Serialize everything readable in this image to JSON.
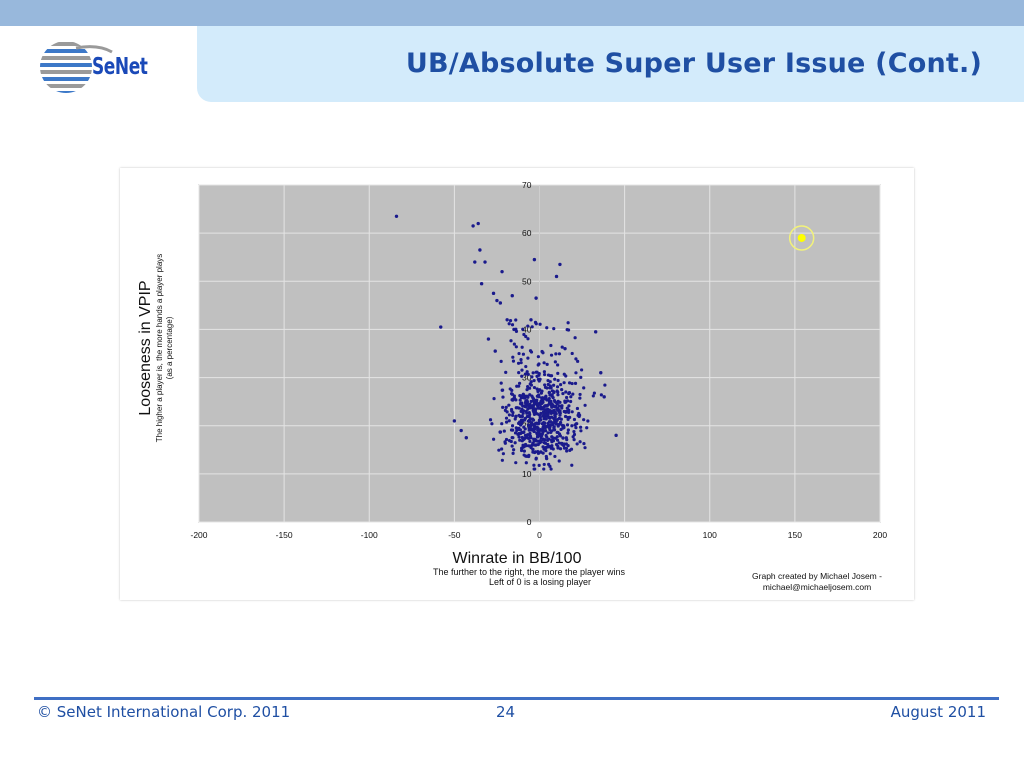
{
  "slide": {
    "title": "UB/Absolute Super User Issue (Cont.)",
    "logo_text": "SeNet"
  },
  "footer": {
    "copyright": "© SeNet International Corp. 2011",
    "page_number": "24",
    "date": "August 2011"
  },
  "colors": {
    "accent": "#1f4fa3",
    "top_band": "#98b8dc",
    "title_panel": "#d3ebfb",
    "plot_background": "#c0c0c0",
    "point_color": "#1a1a8c",
    "highlight_color": "#ffff00"
  },
  "chart_data": {
    "type": "scatter",
    "title": "",
    "xlabel": "Winrate in BB/100",
    "xlabel_sub": [
      "The further to the right, the more the player wins",
      "Left of 0 is a losing player"
    ],
    "ylabel": "Looseness in VPIP",
    "ylabel_sub": [
      "The higher a player is, the more hands a player plays",
      "(as a percentage)"
    ],
    "credit": [
      "Graph created by Michael Josem -",
      "michael@michaeljosem.com"
    ],
    "xlim": [
      -200,
      200
    ],
    "ylim": [
      0,
      70
    ],
    "x_ticks": [
      "-200",
      "-150",
      "-100",
      "-50",
      "0",
      "50",
      "100",
      "150",
      "200"
    ],
    "y_ticks": [
      "0",
      "10",
      "20",
      "30",
      "40",
      "50",
      "60",
      "70"
    ],
    "grid": true,
    "highlight": {
      "x": 154,
      "y": 59
    },
    "outliers": [
      [
        -84,
        63.5
      ],
      [
        -36,
        62
      ],
      [
        -39,
        61.5
      ],
      [
        -3,
        54.5
      ],
      [
        -32,
        54
      ],
      [
        -38,
        54
      ],
      [
        -35,
        56.5
      ],
      [
        12,
        53.5
      ],
      [
        -22,
        52
      ],
      [
        10,
        51
      ],
      [
        -34,
        49.5
      ],
      [
        -27,
        47.5
      ],
      [
        -25,
        46
      ],
      [
        -23,
        45.5
      ],
      [
        -16,
        47
      ],
      [
        -2,
        46.5
      ],
      [
        -5,
        42
      ],
      [
        -58,
        40.5
      ],
      [
        -15,
        40
      ],
      [
        -19,
        42
      ],
      [
        33,
        39.5
      ],
      [
        15,
        36
      ],
      [
        -30,
        38
      ],
      [
        -26,
        35.5
      ],
      [
        -50,
        21
      ],
      [
        -46,
        19
      ],
      [
        -43,
        17.5
      ],
      [
        45,
        18
      ],
      [
        36,
        31
      ],
      [
        38,
        26
      ]
    ],
    "cluster": {
      "count": 620,
      "x_mean": 0,
      "x_sd": 11,
      "y_mean": 21,
      "y_sd": 4.5,
      "tail_count": 70,
      "tail_y_range": [
        26,
        42
      ]
    }
  }
}
